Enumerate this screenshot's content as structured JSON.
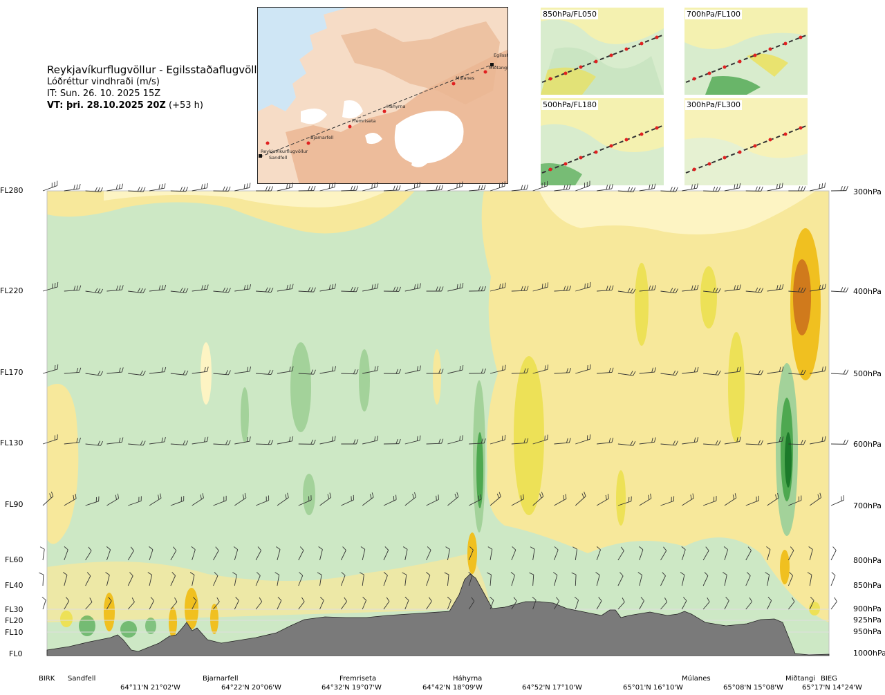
{
  "header": {
    "title": "Reykjavíkurflugvöllur - Egilsstaðaflugvöllur",
    "subtitle": "Lóðréttur vindhraði (m/s)",
    "issue_time": "IT: Sun. 26. 10. 2025 15Z",
    "valid_time_bold": "VT: þri. 28.10.2025 20Z",
    "valid_time_offset": " (+53 h)"
  },
  "map": {
    "place_labels": [
      "Egilsstaðir",
      "Miðtangi",
      "Múlanes",
      "Háhyrna",
      "Fremriseta",
      "Bjarnarfell",
      "Reykjavíkurflugvöllur",
      "Sandfell"
    ]
  },
  "mini_maps": [
    {
      "label": "850hPa/FL050"
    },
    {
      "label": "700hPa/FL100"
    },
    {
      "label": "500hPa/FL180"
    },
    {
      "label": "300hPa/FL300"
    }
  ],
  "levels": [
    {
      "fl": "FL280",
      "hpa": "300hPa"
    },
    {
      "fl": "FL220",
      "hpa": "400hPa"
    },
    {
      "fl": "FL170",
      "hpa": "500hPa"
    },
    {
      "fl": "FL130",
      "hpa": "600hPa"
    },
    {
      "fl": "FL90",
      "hpa": "700hPa"
    },
    {
      "fl": "FL60",
      "hpa": "800hPa"
    },
    {
      "fl": "FL40",
      "hpa": "850hPa"
    },
    {
      "fl": "FL30",
      "hpa": "900hPa"
    },
    {
      "fl": "FL20",
      "hpa": "925hPa"
    },
    {
      "fl": "FL10",
      "hpa": "950hPa"
    },
    {
      "fl": "FL0",
      "hpa": "1000hPa"
    }
  ],
  "waypoints": [
    "BIRK",
    "Sandfell",
    "Bjarnarfell",
    "Fremriseta",
    "Háhyrna",
    "Múlanes",
    "Miðtangi",
    "BIEG"
  ],
  "coordinates": [
    "64°11'N 21°02'W",
    "64°22'N 20°06'W",
    "64°32'N 19°07'W",
    "64°42'N 18°09'W",
    "64°52'N 17°10'W",
    "65°01'N 16°10'W",
    "65°08'N 15°08'W",
    "65°17'N 14°24'W"
  ],
  "chart_data": {
    "type": "heatmap",
    "title": "Reykjavíkurflugvöllur - Egilsstaðaflugvöllur",
    "variable": "Lóðréttur vindhraði (m/s)",
    "y_axis_left": [
      "FL0",
      "FL10",
      "FL20",
      "FL30",
      "FL40",
      "FL60",
      "FL90",
      "FL130",
      "FL170",
      "FL220",
      "FL280"
    ],
    "y_axis_right": [
      "1000hPa",
      "950hPa",
      "925hPa",
      "900hPa",
      "850hPa",
      "800hPa",
      "700hPa",
      "600hPa",
      "500hPa",
      "400hPa",
      "300hPa"
    ],
    "x_ticks": [
      "BIRK",
      "Sandfell",
      "Bjarnarfell",
      "Fremriseta",
      "Háhyrna",
      "Múlanes",
      "Miðtangi",
      "BIEG"
    ],
    "colors": {
      "downdraft_weak": "#e4f3dc",
      "downdraft": "#cde8c5",
      "downdraft_mid": "#a3d29a",
      "downdraft_strong": "#4ea850",
      "downdraft_core": "#1c7a2a",
      "updraft_weak": "#fdf4c3",
      "updraft": "#f7e89b",
      "updraft_mid": "#ede157",
      "updraft_strong": "#f0c020",
      "updraft_core": "#d07a1c",
      "terrain": "#7a7a7a",
      "wind_barb": "#333333"
    },
    "grid": false
  }
}
